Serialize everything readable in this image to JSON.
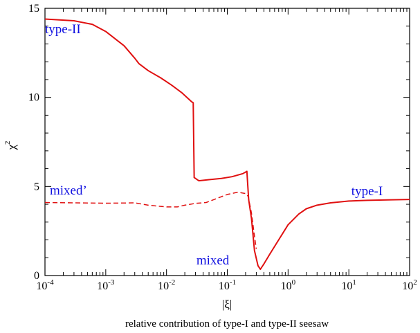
{
  "chart_data": {
    "type": "line",
    "title": "",
    "xlabel": "|ξ|",
    "ylabel": "χ²",
    "ylabel_base": "χ",
    "ylabel_sup": "2",
    "caption": "relative contribution of type-I and type-II seesaw",
    "x_scale": "log",
    "xlim": [
      0.0001,
      100
    ],
    "ylim": [
      0,
      15
    ],
    "grid": false,
    "legend": "none",
    "x_ticks": [
      {
        "value": 0.0001,
        "base": "10",
        "exp": "-4"
      },
      {
        "value": 0.001,
        "base": "10",
        "exp": "-3"
      },
      {
        "value": 0.01,
        "base": "10",
        "exp": "-2"
      },
      {
        "value": 0.1,
        "base": "10",
        "exp": "-1"
      },
      {
        "value": 1,
        "base": "10",
        "exp": "0"
      },
      {
        "value": 10,
        "base": "10",
        "exp": "1"
      },
      {
        "value": 100,
        "base": "10",
        "exp": "2"
      }
    ],
    "y_ticks": [
      {
        "value": 0,
        "label": "0"
      },
      {
        "value": 5,
        "label": "5"
      },
      {
        "value": 10,
        "label": "10"
      },
      {
        "value": 15,
        "label": "15"
      }
    ],
    "series": [
      {
        "style": "solid",
        "color": "#e01010",
        "points": [
          [
            0.0001,
            14.4
          ],
          [
            0.0003,
            14.3
          ],
          [
            0.0006,
            14.1
          ],
          [
            0.001,
            13.7
          ],
          [
            0.002,
            12.9
          ],
          [
            0.003,
            12.2
          ],
          [
            0.0035,
            11.9
          ],
          [
            0.005,
            11.5
          ],
          [
            0.008,
            11.1
          ],
          [
            0.012,
            10.7
          ],
          [
            0.018,
            10.25
          ],
          [
            0.026,
            9.75
          ],
          [
            0.0275,
            9.7
          ],
          [
            0.0285,
            5.5
          ],
          [
            0.034,
            5.32
          ],
          [
            0.05,
            5.38
          ],
          [
            0.08,
            5.45
          ],
          [
            0.12,
            5.55
          ],
          [
            0.18,
            5.72
          ],
          [
            0.21,
            5.85
          ],
          [
            0.225,
            4.25
          ],
          [
            0.25,
            3.2
          ],
          [
            0.28,
            1.4
          ],
          [
            0.32,
            0.55
          ],
          [
            0.35,
            0.35
          ],
          [
            0.4,
            0.65
          ],
          [
            0.5,
            1.2
          ],
          [
            0.7,
            2.0
          ],
          [
            1,
            2.85
          ],
          [
            1.5,
            3.45
          ],
          [
            2,
            3.75
          ],
          [
            3,
            3.95
          ],
          [
            5,
            4.08
          ],
          [
            10,
            4.18
          ],
          [
            20,
            4.22
          ],
          [
            50,
            4.25
          ],
          [
            100,
            4.27
          ]
        ]
      },
      {
        "style": "dashed",
        "color": "#e01010",
        "points": [
          [
            0.0001,
            4.1
          ],
          [
            0.0003,
            4.08
          ],
          [
            0.001,
            4.06
          ],
          [
            0.002,
            4.07
          ],
          [
            0.003,
            4.08
          ],
          [
            0.005,
            3.95
          ],
          [
            0.01,
            3.85
          ],
          [
            0.015,
            3.85
          ],
          [
            0.02,
            3.95
          ],
          [
            0.03,
            4.05
          ],
          [
            0.045,
            4.1
          ],
          [
            0.07,
            4.35
          ],
          [
            0.1,
            4.55
          ],
          [
            0.15,
            4.68
          ],
          [
            0.2,
            4.6
          ],
          [
            0.22,
            4.45
          ],
          [
            0.25,
            3.5
          ],
          [
            0.28,
            2.2
          ],
          [
            0.3,
            1.5
          ]
        ]
      }
    ],
    "annotations": [
      {
        "text": "type-II",
        "x": 0.0001,
        "y": 13.6
      },
      {
        "text": "mixed’",
        "x": 0.00012,
        "y": 4.55
      },
      {
        "text": "mixed",
        "x": 0.031,
        "y": 0.62
      },
      {
        "text": "type-I",
        "x": 11,
        "y": 4.5
      }
    ]
  }
}
